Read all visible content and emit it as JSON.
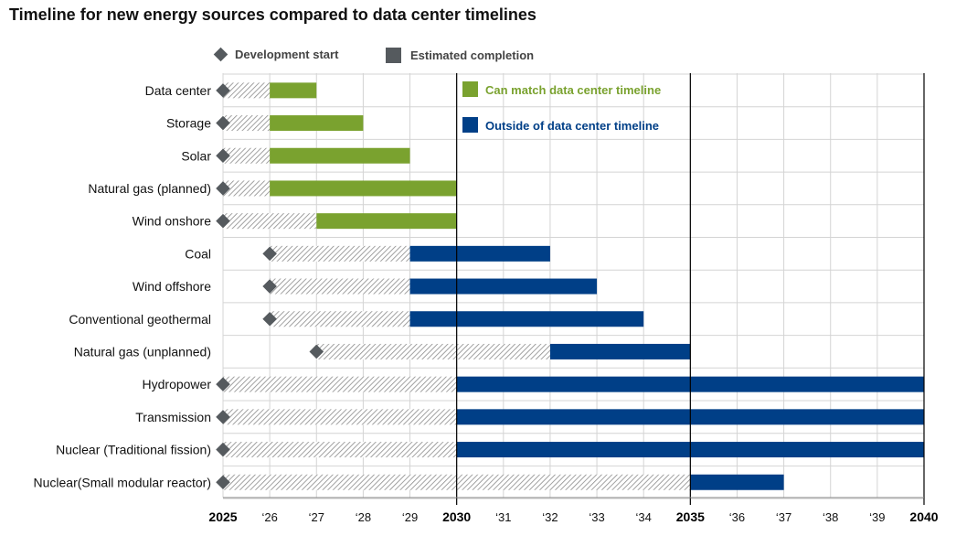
{
  "chart_data": {
    "type": "bar",
    "title": "Timeline for new energy sources compared to data center timelines",
    "legend": {
      "development_start": "Development start",
      "estimated_completion": "Estimated completion",
      "can_match": "Can match data center timeline",
      "outside": "Outside of data center timeline"
    },
    "x_range": [
      2025,
      2040
    ],
    "x_ticks": [
      "2025",
      "‘26",
      "‘27",
      "‘28",
      "‘29",
      "2030",
      "‘31",
      "‘32",
      "‘33",
      "‘34",
      "2035",
      "‘36",
      "‘37",
      "‘38",
      "‘39",
      "2040"
    ],
    "major_ticks": [
      "2025",
      "2030",
      "2035",
      "2040"
    ],
    "reference_lines": [
      2030,
      2035,
      2040
    ],
    "categories": [
      "Data center",
      "Storage",
      "Solar",
      "Natural gas (planned)",
      "Wind onshore",
      "Coal",
      "Wind offshore",
      "Conventional geothermal",
      "Natural gas (unplanned)",
      "Hydropower",
      "Transmission",
      "Nuclear (Traditional fission)",
      "Nuclear(Small modular reactor)"
    ],
    "series": [
      {
        "name": "Development start",
        "values": [
          2025,
          2025,
          2025,
          2025,
          2025,
          2026,
          2026,
          2026,
          2027,
          2025,
          2025,
          2025,
          2025
        ]
      },
      {
        "name": "Estimated completion start",
        "values": [
          2026,
          2026,
          2026,
          2026,
          2027,
          2029,
          2029,
          2029,
          2032,
          2030,
          2030,
          2030,
          2035
        ]
      },
      {
        "name": "Estimated completion end",
        "values": [
          2027,
          2028,
          2029,
          2030,
          2030,
          2032,
          2033,
          2034,
          2035,
          2040,
          2040,
          2040,
          2037
        ]
      }
    ],
    "status": [
      "match",
      "match",
      "match",
      "match",
      "match",
      "outside",
      "outside",
      "outside",
      "outside",
      "outside",
      "outside",
      "outside",
      "outside"
    ],
    "colors": {
      "match": "#7aa22f",
      "outside": "#003f87",
      "diamond": "#555a5e",
      "hatch": "#8a8a8a",
      "grid": "#d4d4d4"
    },
    "grid": true
  }
}
